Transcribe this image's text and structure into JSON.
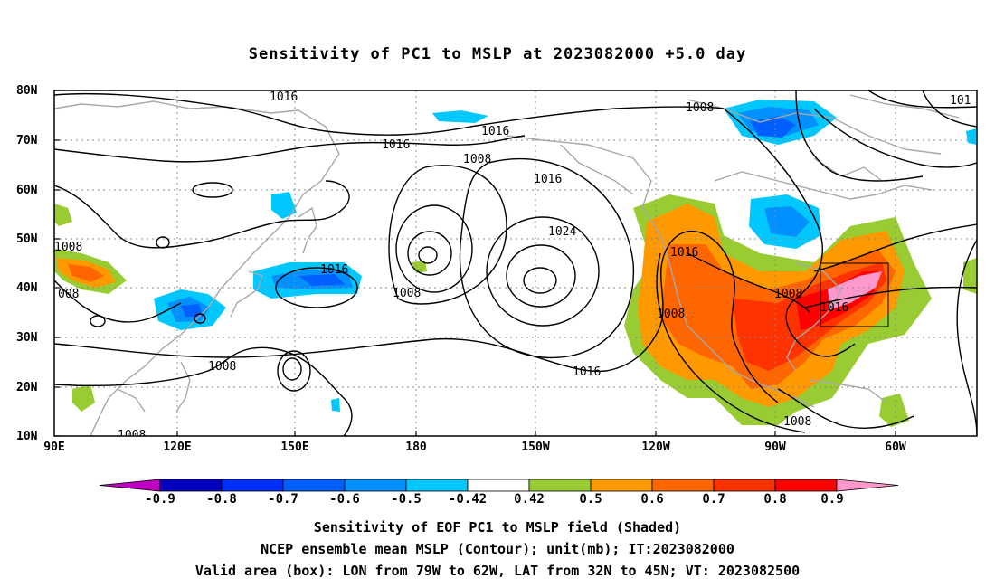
{
  "title": "Sensitivity of PC1 to MSLP at 2023082000 +5.0 day",
  "lat_labels": [
    "80N",
    "70N",
    "60N",
    "50N",
    "40N",
    "30N",
    "20N",
    "10N"
  ],
  "lon_labels": [
    "90E",
    "120E",
    "150E",
    "180",
    "150W",
    "120W",
    "90W",
    "60W"
  ],
  "contour_labels": [
    {
      "text": "1016"
    },
    {
      "text": "1016"
    },
    {
      "text": "1016"
    },
    {
      "text": "1008"
    },
    {
      "text": "1016"
    },
    {
      "text": "1008"
    },
    {
      "text": "101"
    },
    {
      "text": "1008"
    },
    {
      "text": "008"
    },
    {
      "text": "1016"
    },
    {
      "text": "1008"
    },
    {
      "text": "1024"
    },
    {
      "text": "1016"
    },
    {
      "text": "1008"
    },
    {
      "text": "1008"
    },
    {
      "text": "1016"
    },
    {
      "text": "1008"
    },
    {
      "text": "1016"
    },
    {
      "text": "1008"
    },
    {
      "text": "1008"
    }
  ],
  "colorbar": {
    "labels": [
      "-0.9",
      "-0.8",
      "-0.7",
      "-0.6",
      "-0.5",
      "-0.42",
      "0.42",
      "0.5",
      "0.6",
      "0.7",
      "0.8",
      "0.9"
    ],
    "colors": [
      "#c000c0",
      "#0000c0",
      "#0030ff",
      "#0060ff",
      "#0090ff",
      "#00c8ff",
      "#ffffff",
      "#99cc33",
      "#ff9900",
      "#ff6600",
      "#ff3300",
      "#ff0000",
      "#ff99cc"
    ]
  },
  "captions": {
    "line1": "Sensitivity of EOF PC1 to MSLP field (Shaded)",
    "line2": "NCEP ensemble mean MSLP (Contour); unit(mb); IT:2023082000",
    "line3": "Valid area (box): LON from 79W to 62W, LAT from 32N to 45N; VT: 2023082500"
  }
}
